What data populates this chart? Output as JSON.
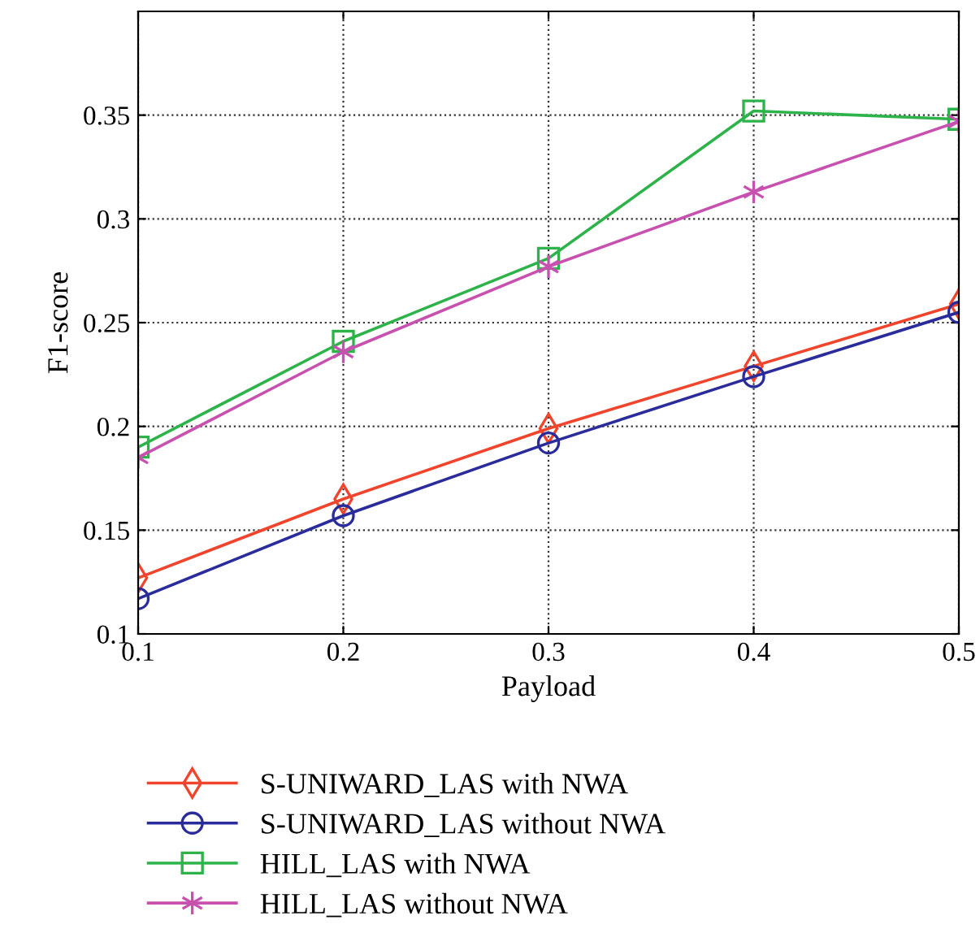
{
  "chart_data": {
    "type": "line",
    "xlabel": "Payload",
    "ylabel": "F1-score",
    "x": [
      0.1,
      0.2,
      0.3,
      0.4,
      0.5
    ],
    "series": [
      {
        "name": "S-UNIWARD_LAS with NWA",
        "color": "#f0452c",
        "marker": "diamond",
        "values": [
          0.127,
          0.165,
          0.199,
          0.229,
          0.259
        ]
      },
      {
        "name": "S-UNIWARD_LAS without NWA",
        "color": "#2b2c9b",
        "marker": "circle",
        "values": [
          0.117,
          0.157,
          0.192,
          0.224,
          0.255
        ]
      },
      {
        "name": "HILL_LAS with NWA",
        "color": "#2db34a",
        "marker": "square",
        "values": [
          0.19,
          0.241,
          0.281,
          0.352,
          0.348
        ]
      },
      {
        "name": "HILL_LAS without NWA",
        "color": "#c851b0",
        "marker": "cross",
        "values": [
          0.185,
          0.236,
          0.277,
          0.313,
          0.347
        ]
      }
    ],
    "xlim": [
      0.1,
      0.5
    ],
    "ylim": [
      0.1,
      0.4
    ],
    "xticks": [
      0.1,
      0.2,
      0.3,
      0.4,
      0.5
    ],
    "yticks": [
      0.1,
      0.15,
      0.2,
      0.25,
      0.3,
      0.35
    ],
    "grid": true,
    "legend": "bottom",
    "line_style": "solid"
  }
}
